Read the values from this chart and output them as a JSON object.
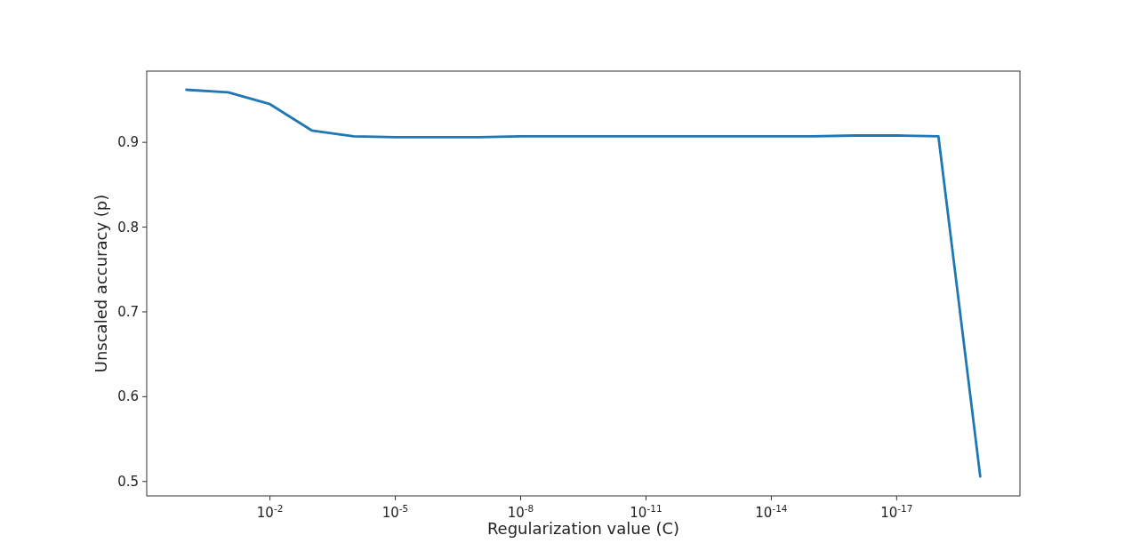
{
  "chart_data": {
    "type": "line",
    "xlabel": "Regularization value (C)",
    "ylabel": "Unscaled accuracy (p)",
    "log": "x",
    "x": [
      1,
      0.1,
      0.01,
      0.001,
      0.0001,
      1e-05,
      1e-06,
      1e-07,
      1e-08,
      1e-09,
      1e-10,
      1e-11,
      1e-12,
      1e-13,
      1e-14,
      1e-15,
      1e-16,
      1e-17,
      1e-18,
      1e-19
    ],
    "series": [
      {
        "color": "#1f77b4",
        "values": [
          0.962,
          0.959,
          0.945,
          0.914,
          0.907,
          0.906,
          0.906,
          0.906,
          0.907,
          0.907,
          0.907,
          0.907,
          0.907,
          0.907,
          0.907,
          0.907,
          0.908,
          0.908,
          0.907,
          0.506
        ]
      }
    ],
    "xlim": [
      8.9,
      1.12e-20
    ],
    "xticks": [
      {
        "value": 0.01,
        "label": "10$^{-2}$"
      },
      {
        "value": 1e-05,
        "label": "10$^{-5}$"
      },
      {
        "value": 1e-08,
        "label": "10$^{-8}$"
      },
      {
        "value": 1e-11,
        "label": "10$^{-11}$"
      },
      {
        "value": 1e-14,
        "label": "10$^{-14}$"
      },
      {
        "value": 1e-17,
        "label": "10$^{-17}$"
      }
    ],
    "ylim": [
      0.483,
      0.984
    ],
    "yticks": [
      0.5,
      0.6,
      0.7,
      0.8,
      0.9
    ],
    "grid": false,
    "marker": "none",
    "line_style": "solid"
  }
}
